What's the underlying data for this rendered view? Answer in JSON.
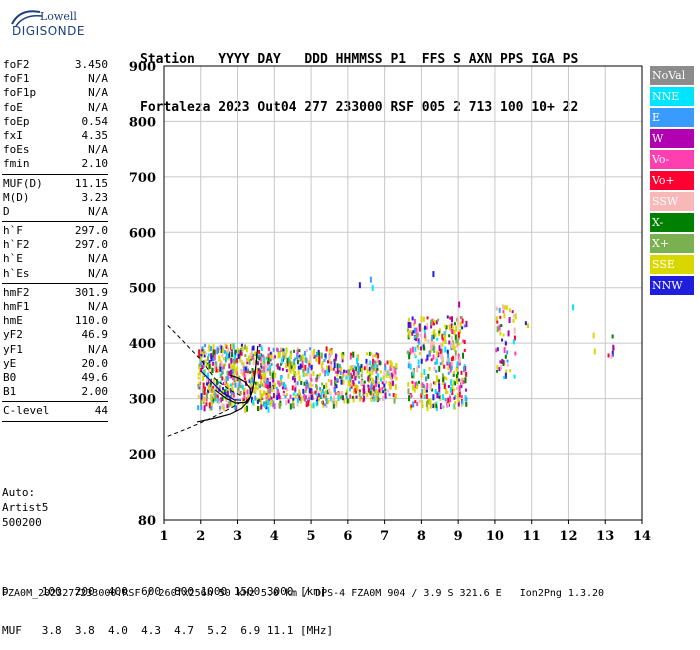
{
  "logo": {
    "line1": "Lowell",
    "line2": "DIGISONDE"
  },
  "header": {
    "line1": "Station   YYYY DAY   DDD HHMMSS P1  FFS S AXN PPS IGA PS",
    "line2": "Fortaleza 2023 Out04 277 233000 RSF 005 2 713 100 10+ 22"
  },
  "params_group1": [
    {
      "label": "foF2",
      "value": "3.450"
    },
    {
      "label": "foF1",
      "value": "N/A"
    },
    {
      "label": "foF1p",
      "value": "N/A"
    },
    {
      "label": "foE",
      "value": "N/A"
    },
    {
      "label": "foEp",
      "value": "0.54"
    },
    {
      "label": "fxI",
      "value": "4.35"
    },
    {
      "label": "foEs",
      "value": "N/A"
    },
    {
      "label": "fmin",
      "value": "2.10"
    }
  ],
  "params_group2": [
    {
      "label": "MUF(D)",
      "value": "11.15"
    },
    {
      "label": "M(D)",
      "value": "3.23"
    },
    {
      "label": "D",
      "value": "N/A"
    }
  ],
  "params_group3": [
    {
      "label": "h`F",
      "value": "297.0"
    },
    {
      "label": "h`F2",
      "value": "297.0"
    },
    {
      "label": "h`E",
      "value": "N/A"
    },
    {
      "label": "h`Es",
      "value": "N/A"
    }
  ],
  "params_group4": [
    {
      "label": "hmF2",
      "value": "301.9"
    },
    {
      "label": "hmF1",
      "value": "N/A"
    },
    {
      "label": "hmE",
      "value": "110.0"
    },
    {
      "label": "yF2",
      "value": "46.9"
    },
    {
      "label": "yF1",
      "value": "N/A"
    },
    {
      "label": "yE",
      "value": "20.0"
    },
    {
      "label": "B0",
      "value": "49.6"
    },
    {
      "label": "B1",
      "value": "2.00"
    }
  ],
  "params_group5": [
    {
      "label": "C-level",
      "value": "44"
    }
  ],
  "autoscale": {
    "line1": "Auto:",
    "line2": "Artist5",
    "line3": "500200"
  },
  "footer": {
    "line1": "D     100  200  400  600  800 1000 1500 3000 [km]",
    "line2": "MUF   3.8  3.8  4.0  4.3  4.7  5.2  6.9 11.1 [MHz]",
    "line3": "FZA0M_2023277233000.RSF / 260fx256h 50 kHz 5.0 km / DPS-4 FZA0M 904 / 3.9 S 321.6 E   Ion2Png 1.3.20"
  },
  "legend": [
    {
      "label": "NoVal",
      "color": "#8c8c8c"
    },
    {
      "label": "NNE",
      "color": "#00e5ff"
    },
    {
      "label": "E",
      "color": "#3a9bff"
    },
    {
      "label": "W",
      "color": "#b000b0"
    },
    {
      "label": "Vo-",
      "color": "#ff3fb0"
    },
    {
      "label": "Vo+",
      "color": "#ff0030"
    },
    {
      "label": "SSW",
      "color": "#f8b8b8"
    },
    {
      "label": "X-",
      "color": "#008000"
    },
    {
      "label": "X+",
      "color": "#7ab050"
    },
    {
      "label": "SSE",
      "color": "#d8d800"
    },
    {
      "label": "NNW",
      "color": "#1e1edc"
    }
  ],
  "chart_data": {
    "type": "scatter",
    "x_ticks": [
      "1",
      "2",
      "3",
      "4",
      "5",
      "6",
      "7",
      "8",
      "9",
      "10",
      "11",
      "12",
      "13",
      "14"
    ],
    "y_ticks": [
      "80",
      "200",
      "300",
      "400",
      "500",
      "600",
      "700",
      "800",
      "900"
    ],
    "xlim": [
      1,
      14
    ],
    "y_range": [
      80,
      900
    ],
    "grid": true
  }
}
